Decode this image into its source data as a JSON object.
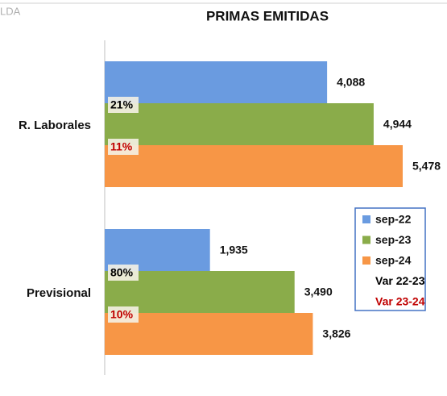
{
  "corner_text": "LDA",
  "chart_data": {
    "type": "bar",
    "orientation": "horizontal",
    "title": "PRIMAS EMITIDAS",
    "categories": [
      "R. Laborales",
      "Previsional"
    ],
    "series": [
      {
        "name": "sep-22",
        "color": "#6a9be0",
        "values": [
          4088,
          1935
        ],
        "value_labels": [
          "4,088",
          "1,935"
        ]
      },
      {
        "name": "sep-23",
        "color": "#8aac4a",
        "values": [
          4944,
          3490
        ],
        "value_labels": [
          "4,944",
          "3,490"
        ]
      },
      {
        "name": "sep-24",
        "color": "#f79646",
        "values": [
          5478,
          3826
        ],
        "value_labels": [
          "5,478",
          "3,826"
        ]
      }
    ],
    "variations": [
      {
        "name": "Var 22-23",
        "color": "#000000",
        "values": [
          21,
          80
        ],
        "value_labels": [
          "21%",
          "80%"
        ]
      },
      {
        "name": "Var 23-24",
        "color": "#c00000",
        "values": [
          11,
          10
        ],
        "value_labels": [
          "11%",
          "10%"
        ]
      }
    ],
    "legend": "right",
    "grid": false
  }
}
